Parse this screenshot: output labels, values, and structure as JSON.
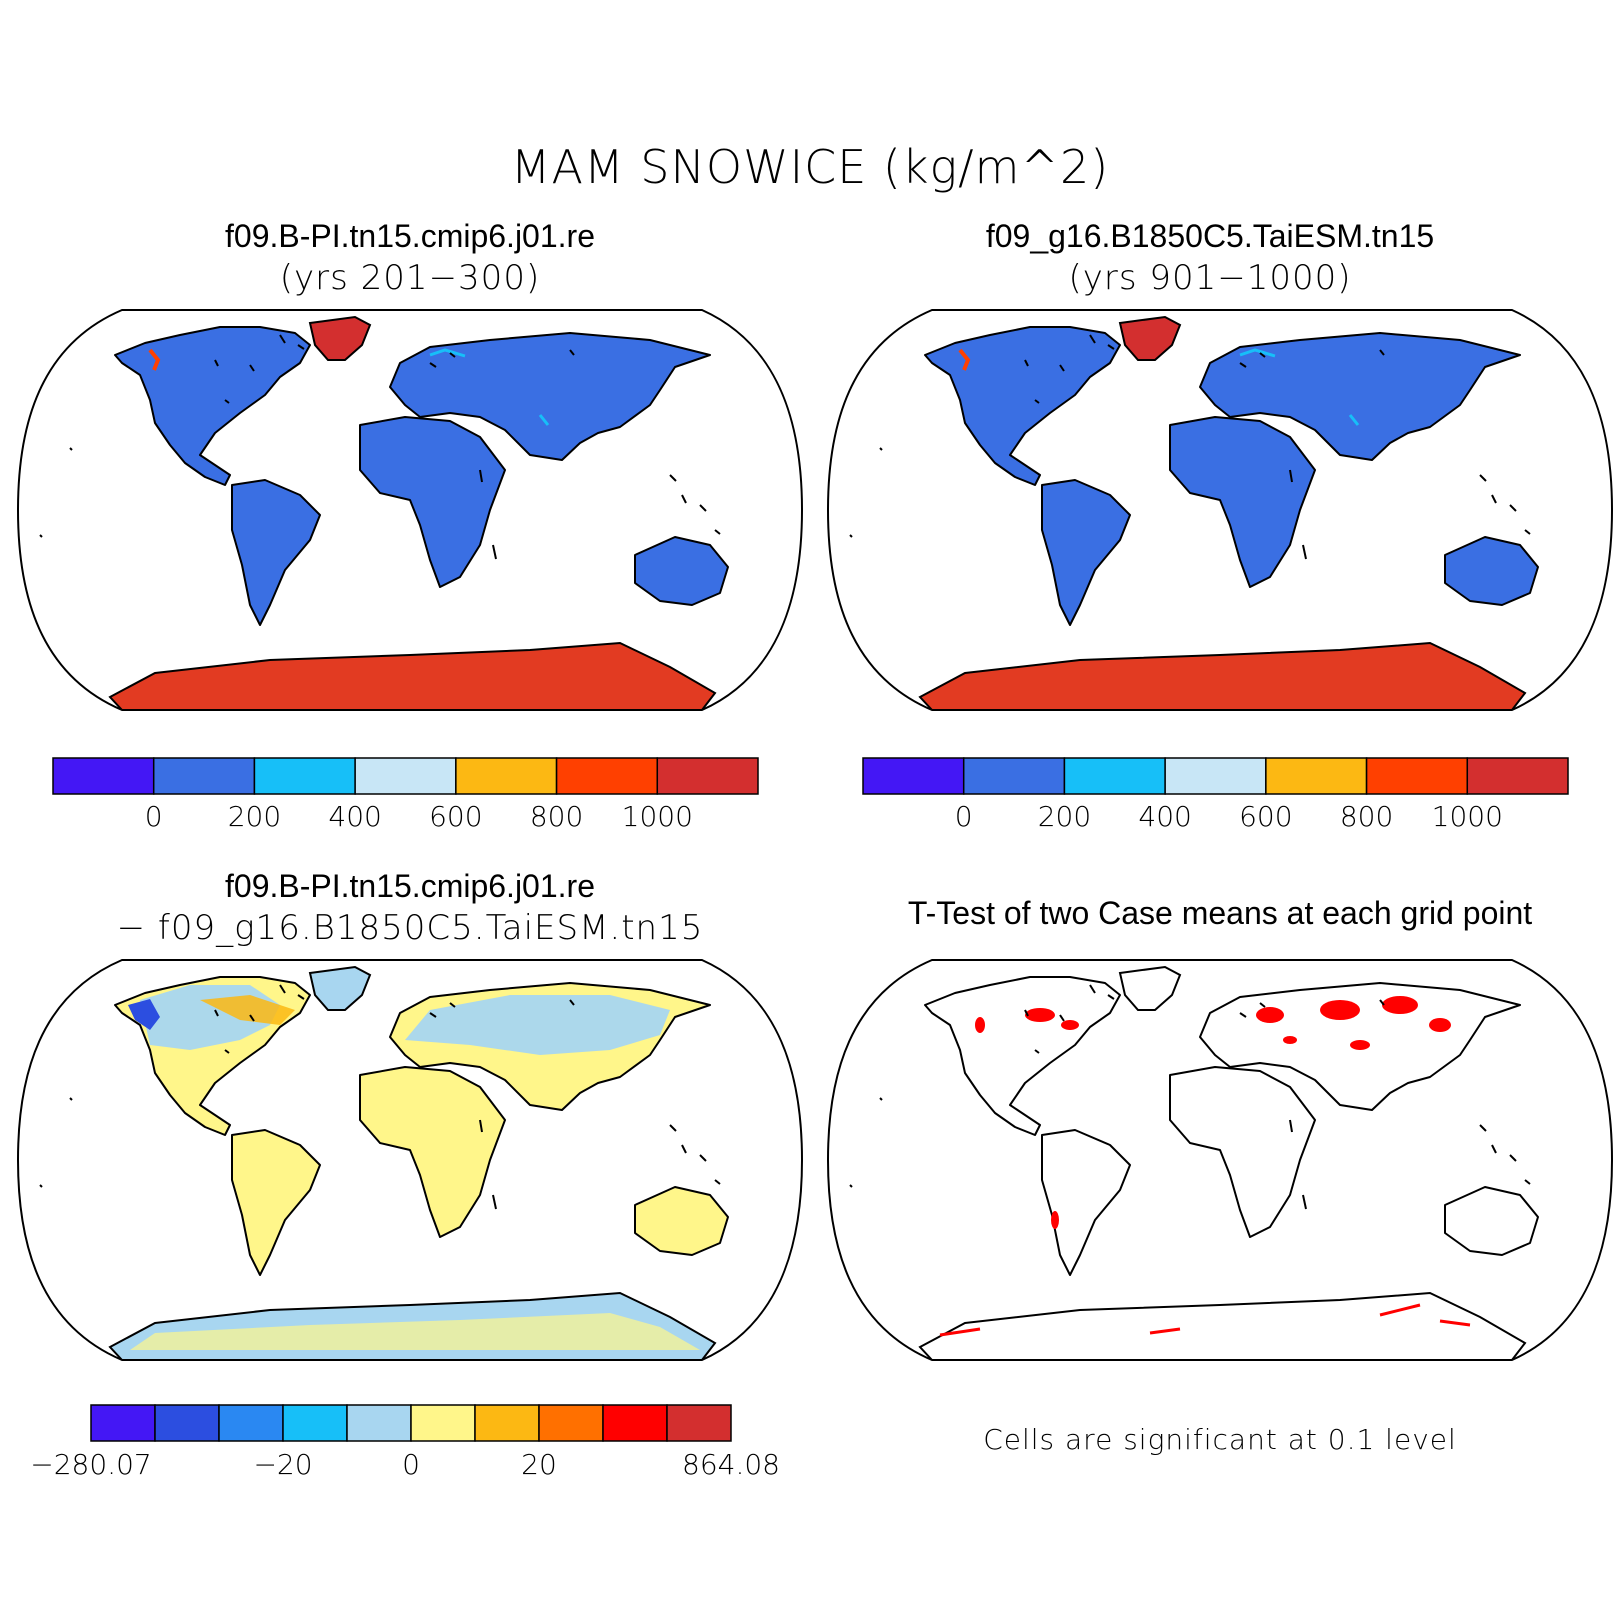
{
  "figure": {
    "title": "MAM SNOWICE (kg/m^2)"
  },
  "panels": [
    {
      "id": "case1",
      "title": "f09.B-PI.tn15.cmip6.j01.re",
      "subtitle": "(yrs 201−300)",
      "land_fill": "#3a6fe3",
      "greenland_fill": "#d32f2f",
      "antarctica_fill": "#e23b22"
    },
    {
      "id": "case2",
      "title": "f09_g16.B1850C5.TaiESM.tn15",
      "subtitle": "(yrs 901−1000)",
      "land_fill": "#3a6fe3",
      "greenland_fill": "#d32f2f",
      "antarctica_fill": "#e23b22"
    },
    {
      "id": "diff",
      "title": "f09.B-PI.tn15.cmip6.j01.re",
      "subtitle": "− f09_g16.B1850C5.TaiESM.tn15",
      "land_fill": "#fff68a",
      "high_lat_fill": "#a8d6f0",
      "antarctica_fill": "#a8d6f0"
    },
    {
      "id": "ttest",
      "title": "T-Test of two Case means at each grid point",
      "note": "Cells are significant at 0.1 level",
      "significant_color": "#ff0000"
    }
  ],
  "colorbars": {
    "abs": {
      "colors": [
        "#4417f5",
        "#3a6fe3",
        "#17bff8",
        "#c8e6f6",
        "#fcb813",
        "#ff4000",
        "#d32f2f"
      ],
      "labels": [
        "0",
        "200",
        "400",
        "600",
        "800",
        "1000"
      ]
    },
    "diff": {
      "colors": [
        "#4417f5",
        "#2c4ee0",
        "#2a88f2",
        "#17bff8",
        "#a8d6f0",
        "#fff68a",
        "#fcb813",
        "#ff7000",
        "#ff0000",
        "#d32f2f"
      ],
      "labels": [
        "−280.07",
        "−20",
        "0",
        "20",
        "864.08"
      ]
    }
  }
}
